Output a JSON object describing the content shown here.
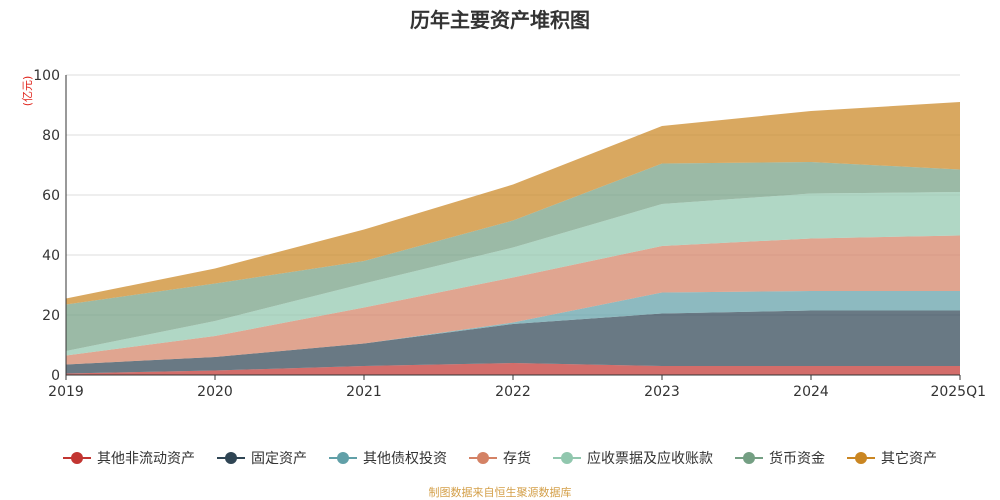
{
  "chart_data": {
    "type": "area",
    "stacked": true,
    "title": "历年主要资产堆积图",
    "ylabel": "(亿元)",
    "ylim": [
      0,
      100
    ],
    "yticks": [
      0,
      20,
      40,
      60,
      80,
      100
    ],
    "categories": [
      "2019",
      "2020",
      "2021",
      "2022",
      "2023",
      "2024",
      "2025Q1"
    ],
    "grid": true,
    "legend_position": "bottom",
    "series": [
      {
        "name": "其他非流动资产",
        "color": "#c23531",
        "values": [
          0.5,
          1.5,
          3.0,
          4.0,
          3.0,
          3.0,
          3.0
        ]
      },
      {
        "name": "固定资产",
        "color": "#2f4554",
        "values": [
          3.0,
          4.5,
          7.5,
          13.0,
          17.5,
          18.5,
          18.5
        ]
      },
      {
        "name": "其他债权投资",
        "color": "#61a0a8",
        "values": [
          0,
          0,
          0,
          0.5,
          7.0,
          6.5,
          6.5
        ]
      },
      {
        "name": "存货",
        "color": "#d48265",
        "values": [
          3.0,
          7.0,
          12.0,
          15.0,
          15.5,
          17.5,
          18.5
        ]
      },
      {
        "name": "应收票据及应收账款",
        "color": "#91c7ae",
        "values": [
          1.5,
          5.0,
          8.0,
          10.0,
          14.0,
          15.0,
          14.5
        ]
      },
      {
        "name": "货币资金",
        "color": "#749f83",
        "values": [
          15.5,
          12.5,
          7.5,
          9.0,
          13.5,
          10.5,
          7.5
        ]
      },
      {
        "name": "其它资产",
        "color": "#ca8622",
        "values": [
          2.0,
          5.0,
          10.5,
          12.0,
          12.5,
          17.0,
          22.5
        ]
      }
    ]
  },
  "source_note": "制图数据来自恒生聚源数据库"
}
